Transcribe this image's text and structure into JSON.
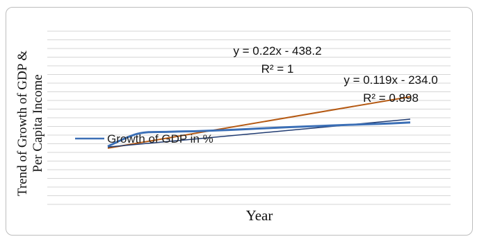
{
  "chart_data": {
    "type": "line",
    "title": "",
    "ylabel": [
      "Trend of Growth of GDP &",
      "Per Capita Income"
    ],
    "xlabel": "Year",
    "grid": true,
    "legend_position": "left",
    "series": [
      {
        "name": "Growth of GDP in %",
        "color": "#3b6fb6",
        "values": [
          0.08,
          0.62,
          0.7,
          0.73,
          0.78,
          0.84,
          0.9,
          0.95,
          1.0,
          1.04,
          1.1
        ]
      }
    ],
    "trendlines": [
      {
        "color": "#b55a14",
        "equation": "y = 0.22x - 438.2",
        "r2": "R² = 1",
        "start": 0.0,
        "end": 2.2
      },
      {
        "color": "#1f3a70",
        "equation": "y = 0.119x - 234.0",
        "r2": "R² = 0.898",
        "start": 0.05,
        "end": 1.24
      }
    ],
    "ylim": [
      -2.4,
      5.0
    ],
    "gridlines": 20
  }
}
